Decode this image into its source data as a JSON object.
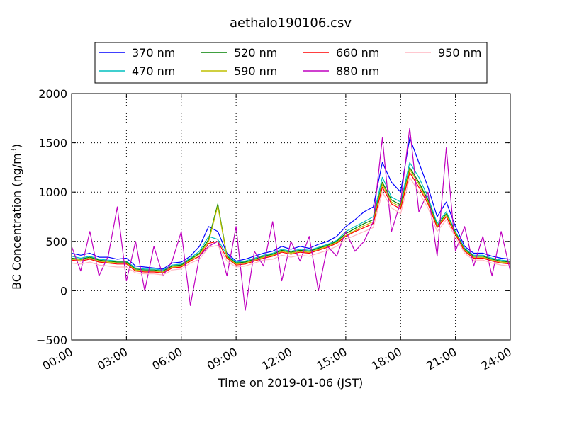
{
  "chart_data": {
    "type": "line",
    "title": "aethalo190106.csv",
    "xlabel": "Time on 2019-01-06 (JST)",
    "ylabel_main": "BC Concentration (ng/m",
    "ylabel_sup": "3",
    "ylabel_close": ")",
    "xlim": [
      0,
      24
    ],
    "ylim": [
      -500,
      2000
    ],
    "xticks": [
      0,
      3,
      6,
      9,
      12,
      15,
      18,
      21,
      24
    ],
    "xtick_labels": [
      "00:00",
      "03:00",
      "06:00",
      "09:00",
      "12:00",
      "15:00",
      "18:00",
      "21:00",
      "24:00"
    ],
    "yticks": [
      -500,
      0,
      500,
      1000,
      1500,
      2000
    ],
    "ytick_labels": [
      "−500",
      "0",
      "500",
      "1000",
      "1500",
      "2000"
    ],
    "grid": true,
    "legend_position": "top-center",
    "x": [
      0.0,
      0.5,
      1.0,
      1.5,
      2.0,
      2.5,
      3.0,
      3.5,
      4.0,
      4.5,
      5.0,
      5.5,
      6.0,
      6.5,
      7.0,
      7.5,
      8.0,
      8.5,
      9.0,
      9.5,
      10.0,
      10.5,
      11.0,
      11.5,
      12.0,
      12.5,
      13.0,
      13.5,
      14.0,
      14.5,
      15.0,
      15.5,
      16.0,
      16.5,
      17.0,
      17.5,
      18.0,
      18.5,
      19.0,
      19.5,
      20.0,
      20.5,
      21.0,
      21.5,
      22.0,
      22.5,
      23.0,
      23.5,
      24.0
    ],
    "series": [
      {
        "name": "370 nm",
        "color": "#0000ff",
        "values": [
          380,
          360,
          380,
          340,
          340,
          320,
          330,
          250,
          240,
          230,
          220,
          280,
          290,
          350,
          450,
          650,
          600,
          380,
          300,
          320,
          350,
          380,
          400,
          450,
          420,
          450,
          430,
          470,
          500,
          550,
          650,
          720,
          800,
          850,
          1300,
          1100,
          1000,
          1550,
          1300,
          1050,
          750,
          900,
          650,
          450,
          380,
          380,
          350,
          330,
          320
        ]
      },
      {
        "name": "470 nm",
        "color": "#00bfbf",
        "values": [
          350,
          330,
          350,
          320,
          310,
          300,
          300,
          230,
          220,
          220,
          210,
          260,
          270,
          330,
          400,
          550,
          520,
          360,
          290,
          300,
          330,
          360,
          380,
          420,
          400,
          420,
          410,
          440,
          470,
          510,
          600,
          650,
          700,
          750,
          1150,
          950,
          900,
          1300,
          1150,
          950,
          680,
          800,
          600,
          430,
          360,
          360,
          330,
          310,
          300
        ]
      },
      {
        "name": "520 nm",
        "color": "#008000",
        "values": [
          330,
          320,
          340,
          310,
          300,
          290,
          290,
          220,
          210,
          210,
          200,
          250,
          260,
          320,
          380,
          520,
          880,
          350,
          280,
          290,
          320,
          350,
          370,
          410,
          390,
          410,
          400,
          430,
          460,
          500,
          580,
          630,
          680,
          720,
          1100,
          920,
          870,
          1250,
          1100,
          920,
          660,
          780,
          590,
          420,
          350,
          350,
          320,
          300,
          290
        ]
      },
      {
        "name": "590 nm",
        "color": "#bfbf00",
        "values": [
          320,
          310,
          330,
          300,
          290,
          280,
          280,
          210,
          200,
          200,
          190,
          240,
          250,
          310,
          370,
          500,
          860,
          340,
          270,
          280,
          310,
          340,
          360,
          400,
          380,
          400,
          390,
          420,
          450,
          490,
          560,
          610,
          660,
          700,
          1080,
          900,
          850,
          1230,
          1080,
          900,
          650,
          770,
          580,
          410,
          340,
          340,
          310,
          290,
          280
        ]
      },
      {
        "name": "660 nm",
        "color": "#ff0000",
        "values": [
          310,
          300,
          320,
          290,
          280,
          270,
          270,
          200,
          190,
          190,
          180,
          230,
          240,
          300,
          350,
          480,
          500,
          330,
          260,
          270,
          300,
          330,
          350,
          390,
          370,
          390,
          380,
          410,
          440,
          480,
          550,
          600,
          640,
          680,
          1050,
          880,
          830,
          1200,
          1050,
          880,
          640,
          750,
          570,
          400,
          330,
          330,
          300,
          280,
          270
        ]
      },
      {
        "name": "880 nm",
        "color": "#bf00bf",
        "values": [
          450,
          200,
          600,
          150,
          350,
          850,
          100,
          500,
          0,
          450,
          150,
          300,
          600,
          -150,
          350,
          450,
          500,
          150,
          650,
          -200,
          400,
          250,
          700,
          100,
          500,
          300,
          550,
          0,
          450,
          350,
          600,
          400,
          500,
          700,
          1550,
          600,
          900,
          1650,
          800,
          1000,
          350,
          1450,
          400,
          650,
          250,
          550,
          150,
          600,
          200
        ]
      },
      {
        "name": "950 nm",
        "color": "#ffb6c1",
        "values": [
          280,
          270,
          290,
          260,
          250,
          240,
          240,
          180,
          170,
          170,
          160,
          210,
          220,
          280,
          320,
          440,
          460,
          300,
          240,
          250,
          280,
          310,
          320,
          360,
          340,
          360,
          350,
          380,
          410,
          450,
          520,
          560,
          600,
          640,
          1000,
          840,
          780,
          1150,
          1000,
          840,
          600,
          720,
          540,
          380,
          310,
          310,
          280,
          260,
          250
        ]
      }
    ]
  }
}
